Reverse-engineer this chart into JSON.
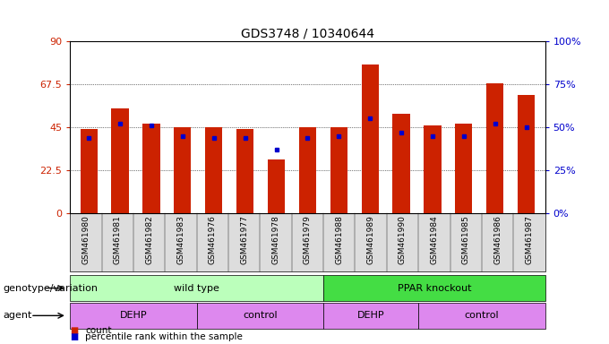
{
  "title": "GDS3748 / 10340644",
  "samples": [
    "GSM461980",
    "GSM461981",
    "GSM461982",
    "GSM461983",
    "GSM461976",
    "GSM461977",
    "GSM461978",
    "GSM461979",
    "GSM461988",
    "GSM461989",
    "GSM461990",
    "GSM461984",
    "GSM461985",
    "GSM461986",
    "GSM461987"
  ],
  "counts": [
    44,
    55,
    47,
    45,
    45,
    44,
    28,
    45,
    45,
    78,
    52,
    46,
    47,
    68,
    62
  ],
  "percentiles": [
    44,
    52,
    51,
    45,
    44,
    44,
    37,
    44,
    45,
    55,
    47,
    45,
    45,
    52,
    50
  ],
  "bar_color": "#cc2200",
  "dot_color": "#0000cc",
  "ylim_left": [
    0,
    90
  ],
  "ylim_right": [
    0,
    100
  ],
  "yticks_left": [
    0,
    22.5,
    45,
    67.5,
    90
  ],
  "yticks_right": [
    0,
    25,
    50,
    75,
    100
  ],
  "ytick_labels_left": [
    "0",
    "22.5",
    "45",
    "67.5",
    "90"
  ],
  "ytick_labels_right": [
    "0",
    "25",
    "50",
    "75",
    "100%"
  ],
  "genotype_groups": [
    {
      "label": "wild type",
      "start": 0,
      "end": 8,
      "color": "#bbffbb"
    },
    {
      "label": "PPAR knockout",
      "start": 8,
      "end": 15,
      "color": "#44dd44"
    }
  ],
  "agent_groups": [
    {
      "label": "DEHP",
      "start": 0,
      "end": 4,
      "color": "#dd88ee"
    },
    {
      "label": "control",
      "start": 4,
      "end": 8,
      "color": "#dd88ee"
    },
    {
      "label": "DEHP",
      "start": 8,
      "end": 11,
      "color": "#dd88ee"
    },
    {
      "label": "control",
      "start": 11,
      "end": 15,
      "color": "#dd88ee"
    }
  ],
  "legend_count_label": "count",
  "legend_percentile_label": "percentile rank within the sample",
  "row1_label": "genotype/variation",
  "row2_label": "agent",
  "background_color": "#ffffff",
  "tick_color_left": "#cc2200",
  "tick_color_right": "#0000cc",
  "xtick_bg_color": "#dddddd"
}
